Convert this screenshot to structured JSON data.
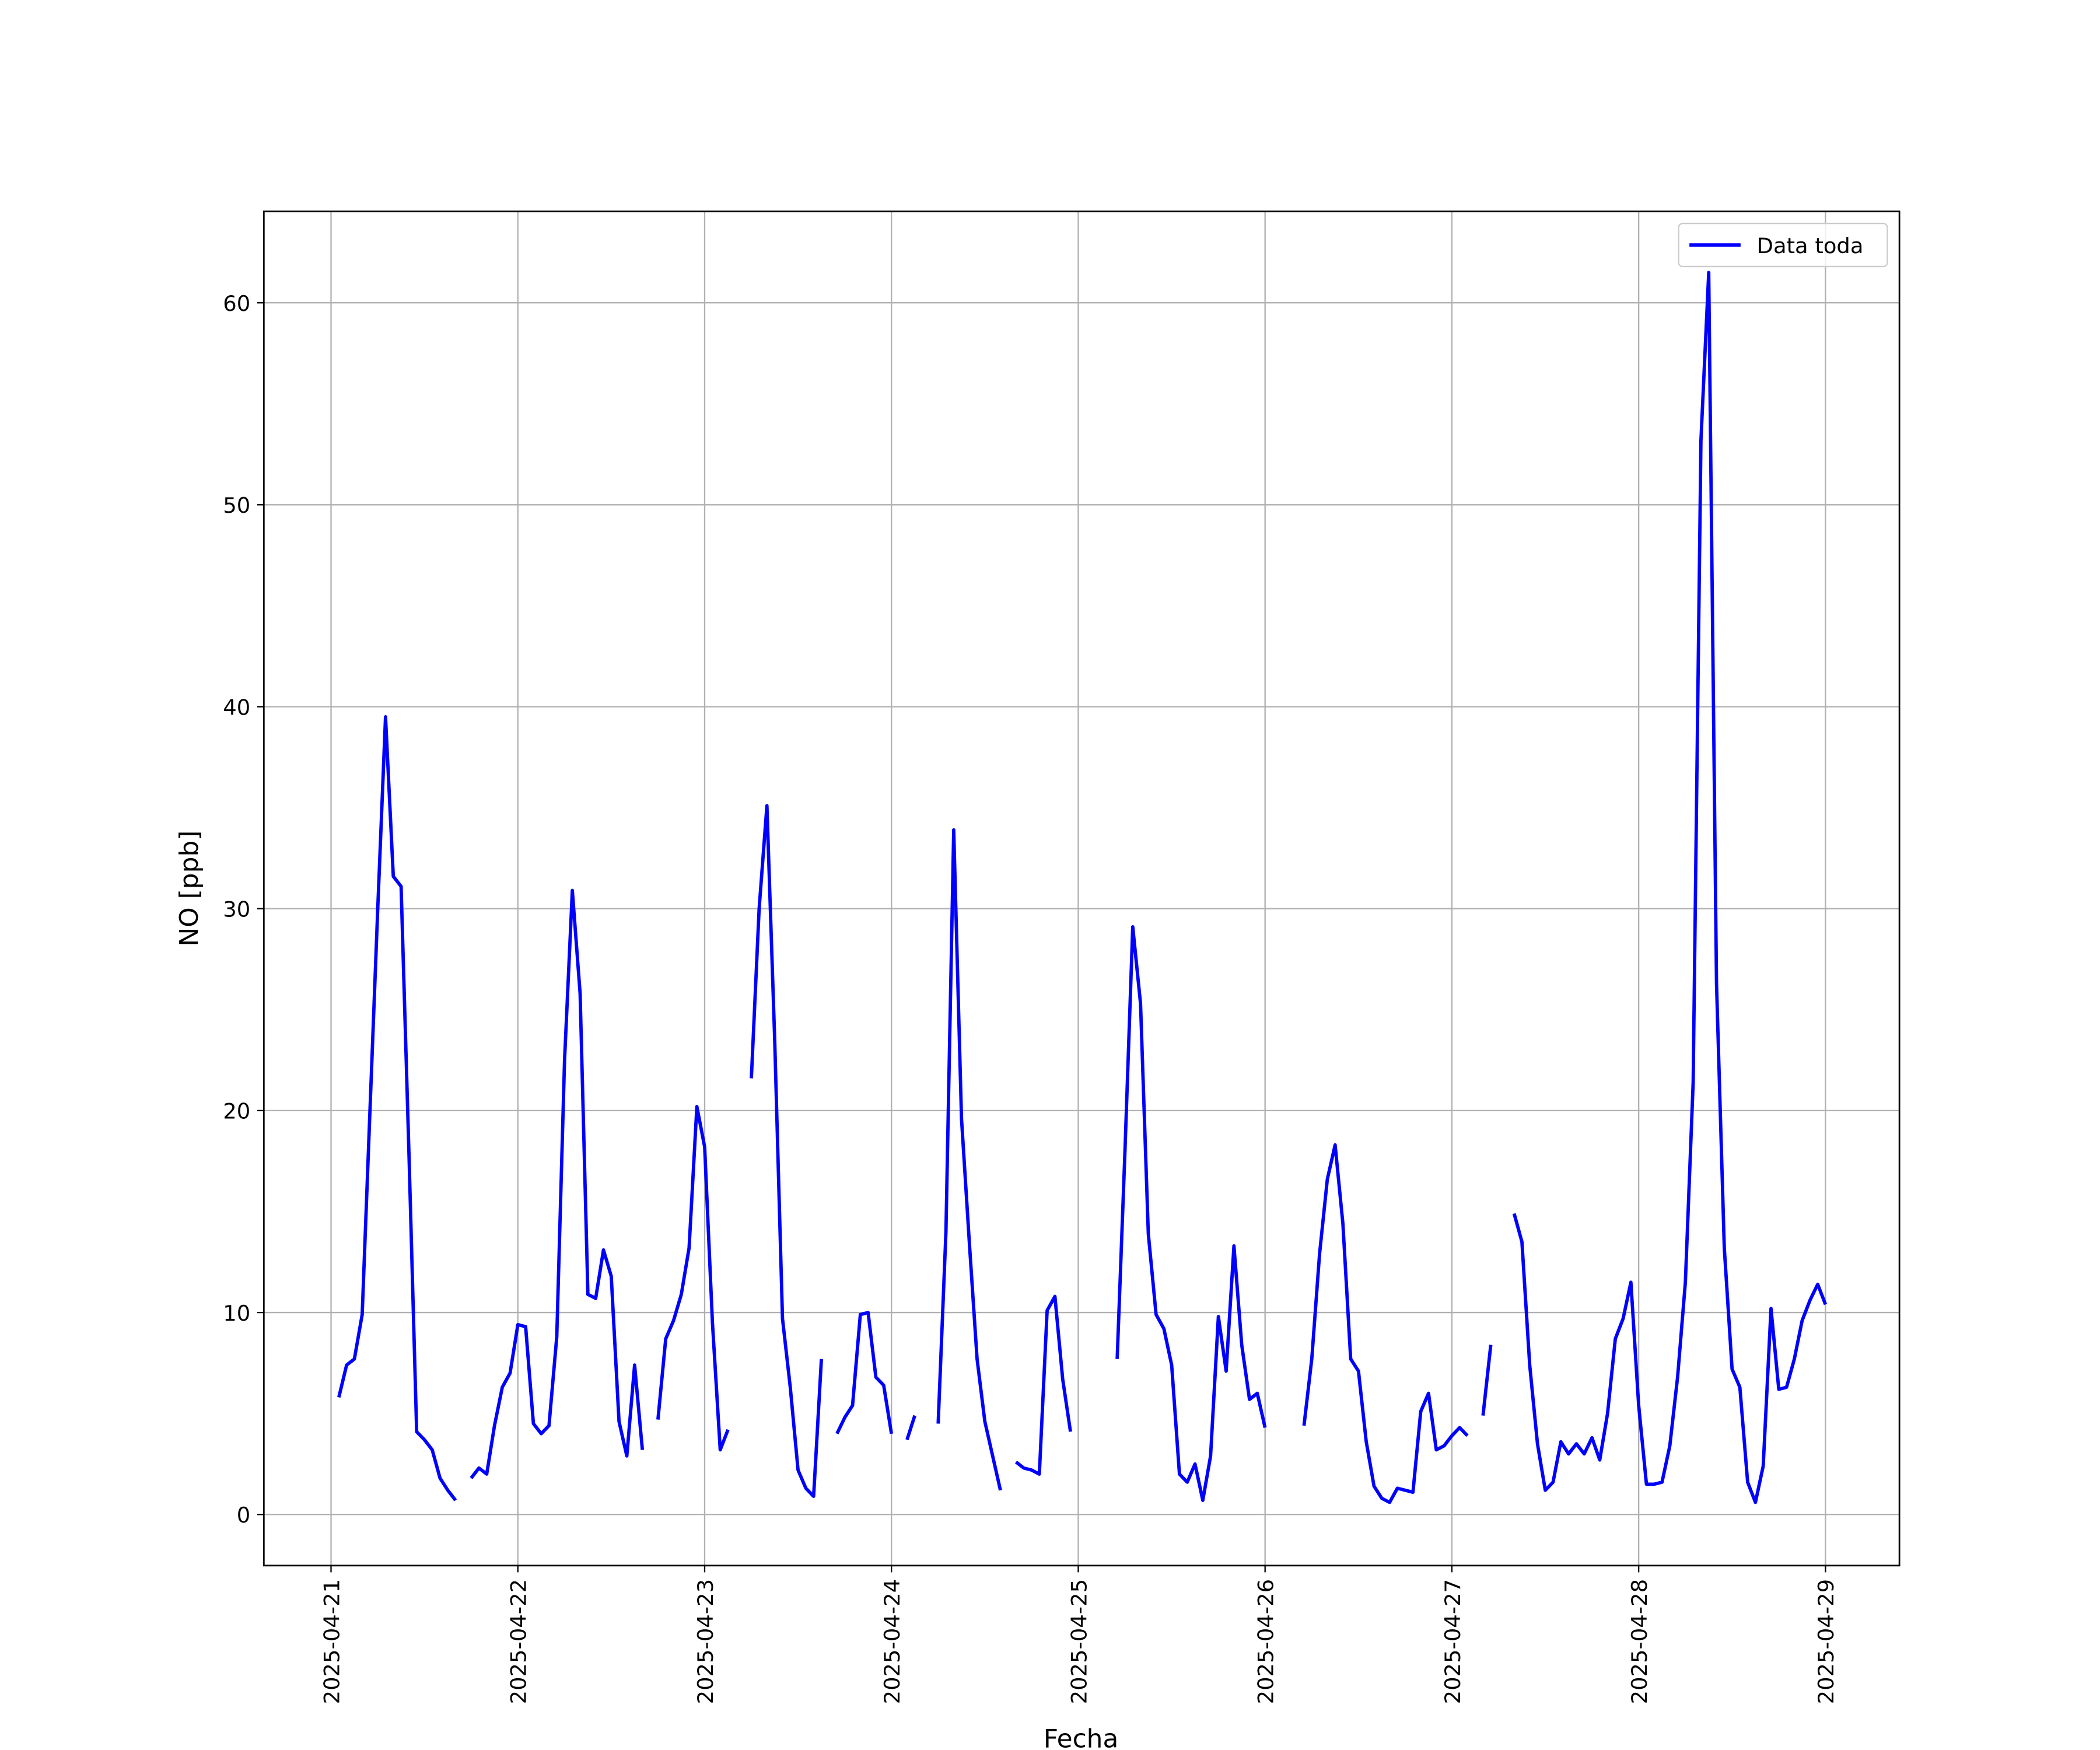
{
  "chart_data": {
    "type": "line",
    "x_label": "Fecha",
    "y_label": "NO [ppb]",
    "x": [
      "2025-04-21T01:00",
      "2025-04-21T02:00",
      "2025-04-21T03:00",
      "2025-04-21T04:00",
      "2025-04-21T05:00",
      "2025-04-21T06:00",
      "2025-04-21T07:00",
      "2025-04-21T08:00",
      "2025-04-21T09:00",
      "2025-04-21T10:00",
      "2025-04-21T11:00",
      "2025-04-21T12:00",
      "2025-04-21T13:00",
      "2025-04-21T14:00",
      "2025-04-21T15:00",
      "2025-04-21T16:00",
      "2025-04-21T17:00",
      "2025-04-21T18:00",
      "2025-04-21T19:00",
      "2025-04-21T20:00",
      "2025-04-21T21:00",
      "2025-04-21T22:00",
      "2025-04-21T23:00",
      "2025-04-22T00:00",
      "2025-04-22T01:00",
      "2025-04-22T02:00",
      "2025-04-22T03:00",
      "2025-04-22T04:00",
      "2025-04-22T05:00",
      "2025-04-22T06:00",
      "2025-04-22T07:00",
      "2025-04-22T08:00",
      "2025-04-22T09:00",
      "2025-04-22T10:00",
      "2025-04-22T11:00",
      "2025-04-22T12:00",
      "2025-04-22T13:00",
      "2025-04-22T14:00",
      "2025-04-22T15:00",
      "2025-04-22T16:00",
      "2025-04-22T17:00",
      "2025-04-22T18:00",
      "2025-04-22T19:00",
      "2025-04-22T20:00",
      "2025-04-22T21:00",
      "2025-04-22T22:00",
      "2025-04-22T23:00",
      "2025-04-23T00:00",
      "2025-04-23T01:00",
      "2025-04-23T02:00",
      "2025-04-23T03:00",
      "2025-04-23T04:00",
      "2025-04-23T05:00",
      "2025-04-23T06:00",
      "2025-04-23T07:00",
      "2025-04-23T08:00",
      "2025-04-23T09:00",
      "2025-04-23T10:00",
      "2025-04-23T11:00",
      "2025-04-23T12:00",
      "2025-04-23T13:00",
      "2025-04-23T14:00",
      "2025-04-23T15:00",
      "2025-04-23T16:00",
      "2025-04-23T17:00",
      "2025-04-23T18:00",
      "2025-04-23T19:00",
      "2025-04-23T20:00",
      "2025-04-23T21:00",
      "2025-04-23T22:00",
      "2025-04-23T23:00",
      "2025-04-24T00:00",
      "2025-04-24T01:00",
      "2025-04-24T02:00",
      "2025-04-24T03:00",
      "2025-04-24T04:00",
      "2025-04-24T05:00",
      "2025-04-24T06:00",
      "2025-04-24T07:00",
      "2025-04-24T08:00",
      "2025-04-24T09:00",
      "2025-04-24T10:00",
      "2025-04-24T11:00",
      "2025-04-24T12:00",
      "2025-04-24T13:00",
      "2025-04-24T14:00",
      "2025-04-24T15:00",
      "2025-04-24T16:00",
      "2025-04-24T17:00",
      "2025-04-24T18:00",
      "2025-04-24T19:00",
      "2025-04-24T20:00",
      "2025-04-24T21:00",
      "2025-04-24T22:00",
      "2025-04-24T23:00",
      "2025-04-25T00:00",
      "2025-04-25T01:00",
      "2025-04-25T02:00",
      "2025-04-25T03:00",
      "2025-04-25T04:00",
      "2025-04-25T05:00",
      "2025-04-25T06:00",
      "2025-04-25T07:00",
      "2025-04-25T08:00",
      "2025-04-25T09:00",
      "2025-04-25T10:00",
      "2025-04-25T11:00",
      "2025-04-25T12:00",
      "2025-04-25T13:00",
      "2025-04-25T14:00",
      "2025-04-25T15:00",
      "2025-04-25T16:00",
      "2025-04-25T17:00",
      "2025-04-25T18:00",
      "2025-04-25T19:00",
      "2025-04-25T20:00",
      "2025-04-25T21:00",
      "2025-04-25T22:00",
      "2025-04-25T23:00",
      "2025-04-26T00:00",
      "2025-04-26T01:00",
      "2025-04-26T02:00",
      "2025-04-26T03:00",
      "2025-04-26T04:00",
      "2025-04-26T05:00",
      "2025-04-26T06:00",
      "2025-04-26T07:00",
      "2025-04-26T08:00",
      "2025-04-26T09:00",
      "2025-04-26T10:00",
      "2025-04-26T11:00",
      "2025-04-26T12:00",
      "2025-04-26T13:00",
      "2025-04-26T14:00",
      "2025-04-26T15:00",
      "2025-04-26T16:00",
      "2025-04-26T17:00",
      "2025-04-26T18:00",
      "2025-04-26T19:00",
      "2025-04-26T20:00",
      "2025-04-26T21:00",
      "2025-04-26T22:00",
      "2025-04-26T23:00",
      "2025-04-27T00:00",
      "2025-04-27T01:00",
      "2025-04-27T02:00",
      "2025-04-27T03:00",
      "2025-04-27T04:00",
      "2025-04-27T05:00",
      "2025-04-27T06:00",
      "2025-04-27T07:00",
      "2025-04-27T08:00",
      "2025-04-27T09:00",
      "2025-04-27T10:00",
      "2025-04-27T11:00",
      "2025-04-27T12:00",
      "2025-04-27T13:00",
      "2025-04-27T14:00",
      "2025-04-27T15:00",
      "2025-04-27T16:00",
      "2025-04-27T17:00",
      "2025-04-27T18:00",
      "2025-04-27T19:00",
      "2025-04-27T20:00",
      "2025-04-27T21:00",
      "2025-04-27T22:00",
      "2025-04-27T23:00",
      "2025-04-28T00:00",
      "2025-04-28T01:00",
      "2025-04-28T02:00",
      "2025-04-28T03:00",
      "2025-04-28T04:00",
      "2025-04-28T05:00",
      "2025-04-28T06:00",
      "2025-04-28T07:00",
      "2025-04-28T08:00",
      "2025-04-28T09:00",
      "2025-04-28T10:00",
      "2025-04-28T11:00",
      "2025-04-28T12:00",
      "2025-04-28T13:00",
      "2025-04-28T14:00",
      "2025-04-28T15:00",
      "2025-04-28T16:00",
      "2025-04-28T17:00",
      "2025-04-28T18:00",
      "2025-04-28T19:00",
      "2025-04-28T20:00",
      "2025-04-28T21:00",
      "2025-04-28T22:00",
      "2025-04-28T23:00",
      "2025-04-29T00:00"
    ],
    "series": [
      {
        "name": "Data toda",
        "color": "#0000ff",
        "values": [
          5.8,
          7.4,
          7.7,
          9.9,
          20,
          30,
          39.5,
          31.6,
          31.1,
          18,
          4.1,
          3.7,
          3.2,
          1.8,
          1.2,
          0.7,
          null,
          1.8,
          2.3,
          2.0,
          4.4,
          6.3,
          7.0,
          9.4,
          9.3,
          4.5,
          4.0,
          4.4,
          8.8,
          22.5,
          30.9,
          25.8,
          10.9,
          10.7,
          13.1,
          11.8,
          4.6,
          2.9,
          7.4,
          3.2,
          null,
          4.7,
          8.7,
          9.6,
          10.9,
          13.2,
          20.2,
          18.2,
          9.5,
          3.2,
          4.2,
          null,
          null,
          21.6,
          30,
          35.1,
          23.5,
          9.7,
          6.3,
          2.2,
          1.3,
          0.9,
          7.7,
          null,
          4.0,
          4.8,
          5.4,
          9.9,
          10.0,
          6.8,
          6.4,
          4.0,
          null,
          3.7,
          4.9,
          null,
          null,
          4.5,
          14,
          33.9,
          19.6,
          13.5,
          7.7,
          4.6,
          2.9,
          1.2,
          null,
          2.6,
          2.3,
          2.2,
          2.0,
          10.1,
          10.8,
          6.7,
          4.1,
          null,
          null,
          null,
          null,
          null,
          7.7,
          18,
          29.1,
          25.3,
          13.9,
          9.9,
          9.2,
          7.4,
          2.0,
          1.6,
          2.5,
          0.7,
          2.9,
          9.8,
          7.1,
          13.3,
          8.4,
          5.7,
          6.0,
          4.3,
          null,
          null,
          null,
          null,
          4.4,
          7.7,
          12.9,
          16.6,
          18.3,
          14.4,
          7.7,
          7.1,
          3.6,
          1.4,
          0.8,
          0.6,
          1.3,
          1.2,
          1.1,
          5.1,
          6.0,
          3.2,
          3.4,
          3.9,
          4.3,
          3.9,
          null,
          4.9,
          8.4,
          null,
          null,
          14.9,
          13.5,
          7.4,
          3.5,
          1.2,
          1.6,
          3.6,
          3.0,
          3.5,
          3.0,
          3.8,
          2.7,
          5.0,
          8.7,
          9.7,
          11.5,
          5.4,
          1.5,
          1.5,
          1.6,
          3.4,
          6.8,
          11.5,
          21.4,
          53.2,
          61.5,
          26.3,
          13.2,
          7.2,
          6.3,
          1.6,
          0.6,
          2.4,
          10.2,
          6.2,
          6.3,
          7.7,
          9.6,
          10.6,
          11.4,
          10.4
        ]
      }
    ],
    "xlim": [
      "2025-04-20T15:22",
      "2025-04-29T09:30"
    ],
    "xticks": [
      "2025-04-21",
      "2025-04-22",
      "2025-04-23",
      "2025-04-24",
      "2025-04-25",
      "2025-04-26",
      "2025-04-27",
      "2025-04-28",
      "2025-04-29"
    ],
    "ylim": [
      -2.53,
      64.53
    ],
    "yticks": [
      0,
      10,
      20,
      30,
      40,
      50,
      60
    ],
    "grid": true,
    "legend": "upper right"
  }
}
